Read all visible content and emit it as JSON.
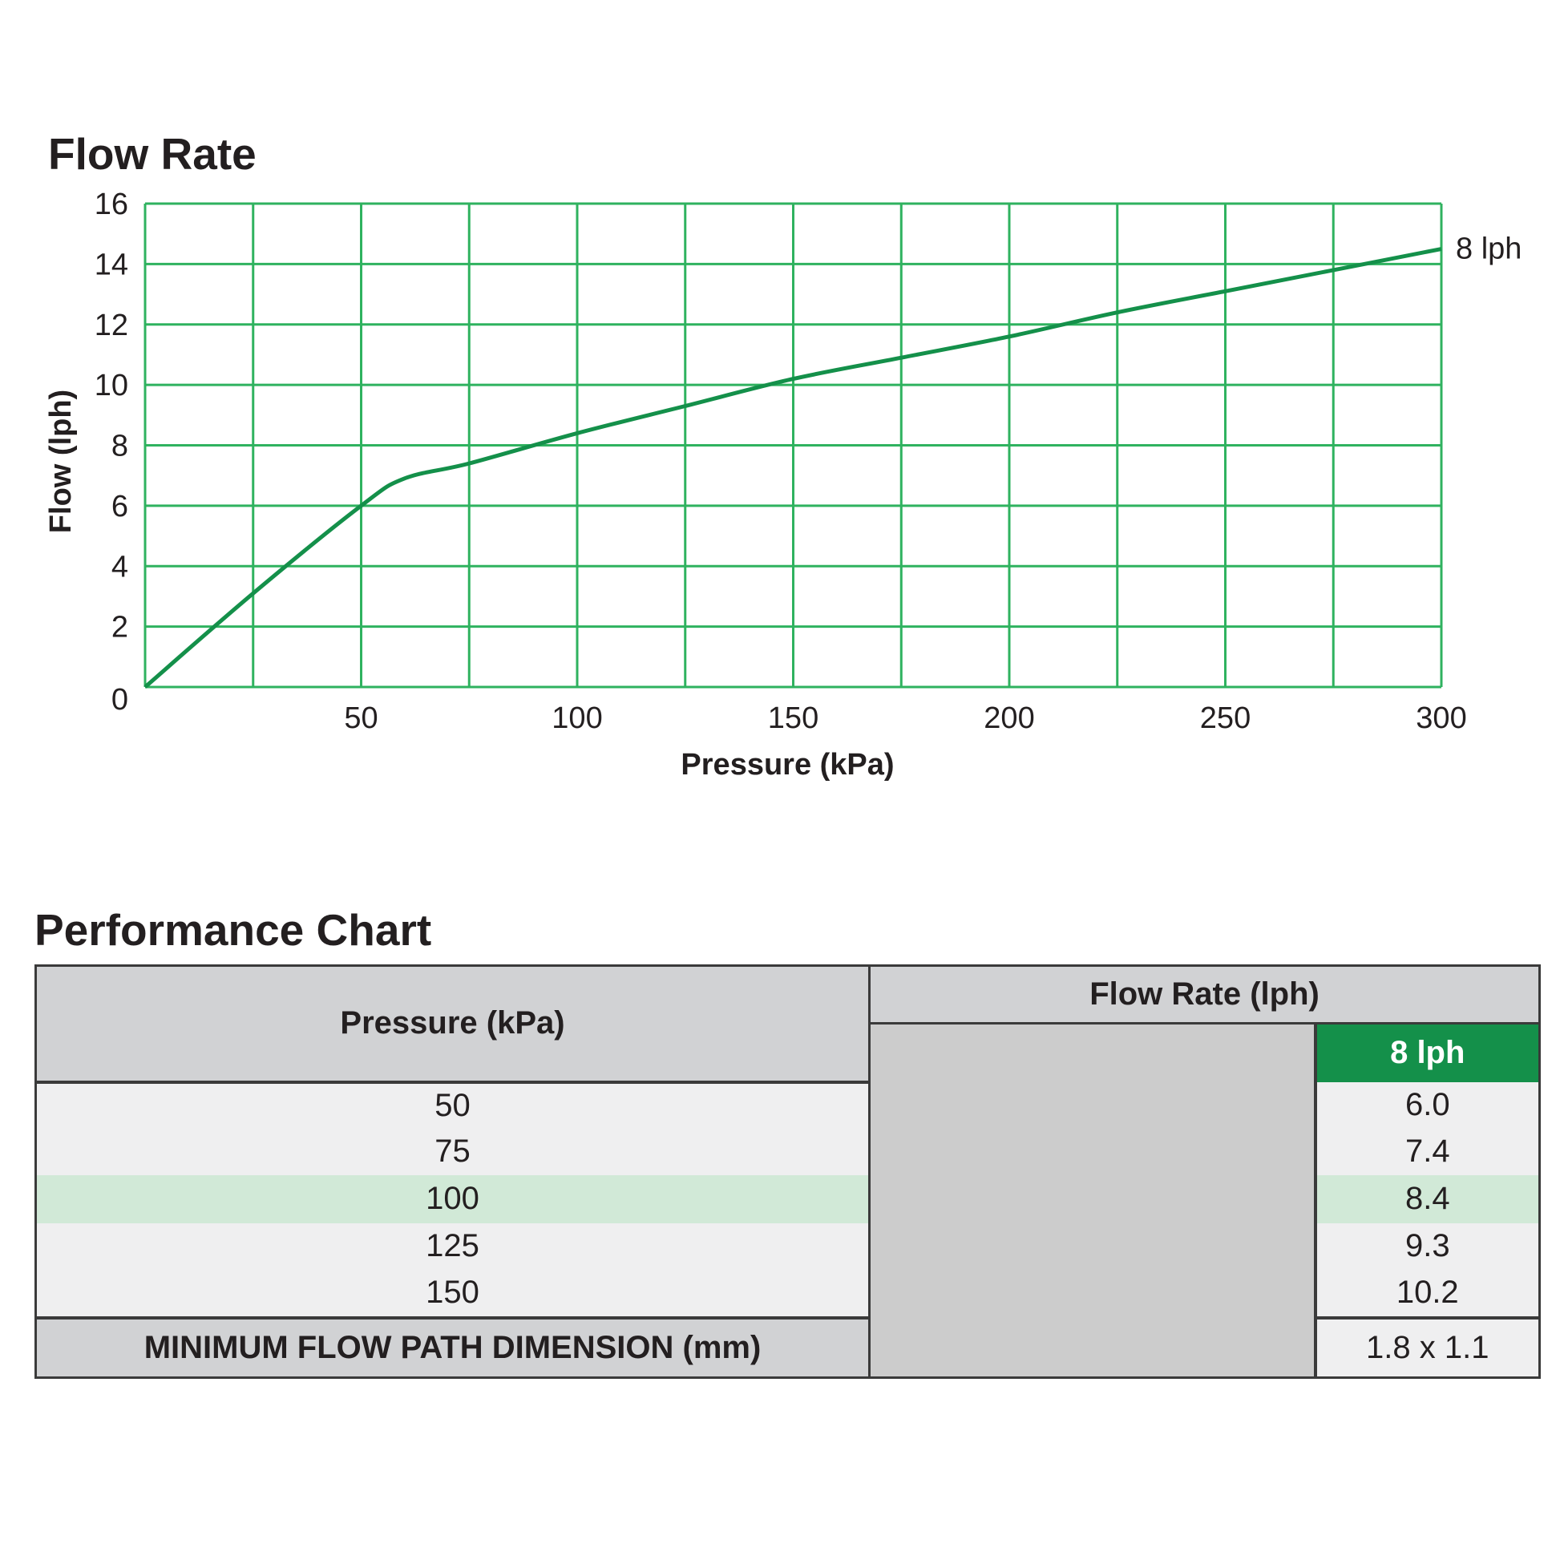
{
  "chart_data": {
    "type": "line",
    "title": "Flow Rate",
    "xlabel": "Pressure (kPa)",
    "ylabel": "Flow (lph)",
    "xlim": [
      0,
      300
    ],
    "ylim": [
      0,
      16
    ],
    "x_ticks": [
      50,
      100,
      150,
      200,
      250,
      300
    ],
    "y_ticks": [
      0,
      2,
      4,
      6,
      8,
      10,
      12,
      14,
      16
    ],
    "grid": true,
    "grid_color": "#2fb25f",
    "series": [
      {
        "name": "8 lph",
        "color": "#14904a",
        "x": [
          0,
          25,
          50,
          60,
          75,
          100,
          125,
          150,
          175,
          200,
          225,
          250,
          275,
          300
        ],
        "y": [
          0,
          3.1,
          6.0,
          6.9,
          7.4,
          8.4,
          9.3,
          10.2,
          10.9,
          11.6,
          12.4,
          13.1,
          13.8,
          14.5
        ]
      }
    ]
  },
  "table": {
    "title": "Performance Chart",
    "header_pressure": "Pressure (kPa)",
    "header_flow": "Flow Rate (lph)",
    "header_model": "8 lph",
    "rows": [
      {
        "pressure": "50",
        "flow": "6.0"
      },
      {
        "pressure": "75",
        "flow": "7.4"
      },
      {
        "pressure": "100",
        "flow": "8.4"
      },
      {
        "pressure": "125",
        "flow": "9.3"
      },
      {
        "pressure": "150",
        "flow": "10.2"
      }
    ],
    "highlight_row": 2,
    "footer_label": "MINIMUM FLOW PATH DIMENSION (mm)",
    "footer_value": "1.8 x 1.1"
  }
}
